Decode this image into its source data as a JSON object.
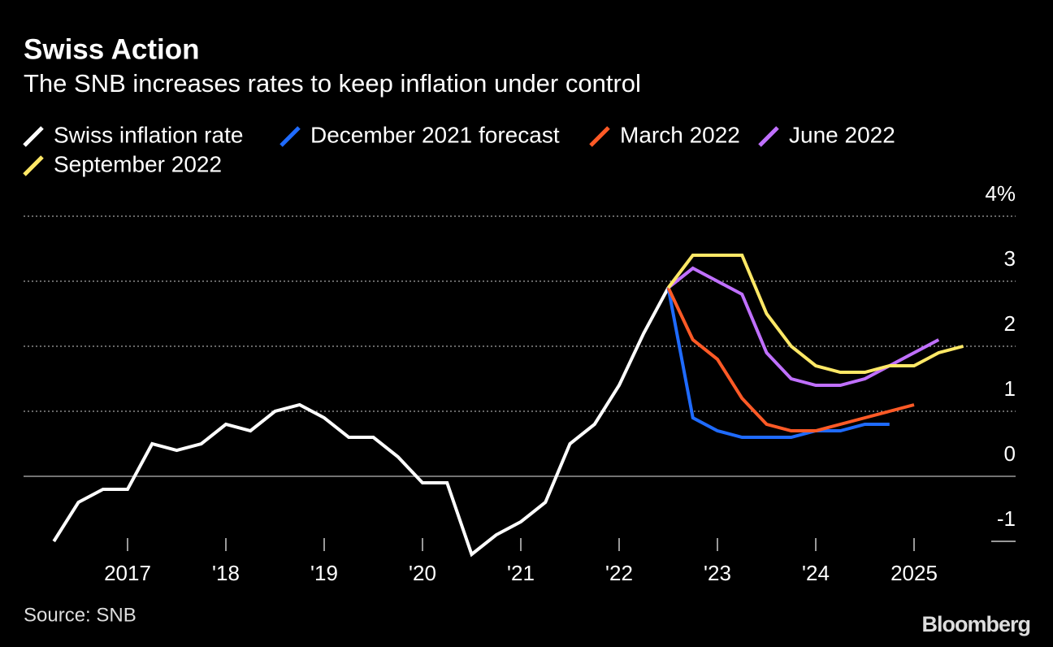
{
  "chart_data": {
    "type": "line",
    "title": "Swiss Action",
    "subtitle": "The SNB increases rates to keep inflation under control",
    "source": "Source: SNB",
    "brand": "Bloomberg",
    "xlim": [
      2016,
      2026
    ],
    "xticks": [
      2017,
      {
        "value": 2018,
        "label": "'18"
      },
      {
        "value": 2019,
        "label": "'19"
      },
      {
        "value": 2020,
        "label": "'20"
      },
      {
        "value": 2021,
        "label": "'21"
      },
      {
        "value": 2022,
        "label": "'22"
      },
      {
        "value": 2023,
        "label": "'23"
      },
      {
        "value": 2024,
        "label": "'24"
      },
      2025
    ],
    "ylim": [
      -1.3,
      4.3
    ],
    "yticks": [
      {
        "value": 4,
        "label": "4%"
      },
      3,
      2,
      1,
      0,
      -1
    ],
    "grid": true,
    "series": [
      {
        "name": "Swiss inflation rate",
        "color": "#ffffff",
        "x": [
          2016.25,
          2016.5,
          2016.75,
          2017.0,
          2017.25,
          2017.5,
          2017.75,
          2018.0,
          2018.25,
          2018.5,
          2018.75,
          2019.0,
          2019.25,
          2019.5,
          2019.75,
          2020.0,
          2020.25,
          2020.5,
          2020.75,
          2021.0,
          2021.25,
          2021.5,
          2021.75,
          2022.0,
          2022.25,
          2022.5
        ],
        "values": [
          -1.0,
          -0.4,
          -0.2,
          -0.2,
          0.5,
          0.4,
          0.5,
          0.8,
          0.7,
          1.0,
          1.1,
          0.9,
          0.6,
          0.6,
          0.3,
          -0.1,
          -0.1,
          -1.2,
          -0.9,
          -0.7,
          -0.4,
          0.5,
          0.8,
          1.4,
          2.2,
          2.9
        ]
      },
      {
        "name": "December 2021 forecast",
        "color": "#1f6bff",
        "x": [
          2022.5,
          2022.75,
          2023.0,
          2023.25,
          2023.5,
          2023.75,
          2024.0,
          2024.25,
          2024.5,
          2024.75
        ],
        "values": [
          2.9,
          0.9,
          0.7,
          0.6,
          0.6,
          0.6,
          0.7,
          0.7,
          0.8,
          0.8
        ]
      },
      {
        "name": "March 2022",
        "color": "#ff5a26",
        "x": [
          2022.5,
          2022.75,
          2023.0,
          2023.25,
          2023.5,
          2023.75,
          2024.0,
          2024.25,
          2024.5,
          2024.75,
          2025.0
        ],
        "values": [
          2.9,
          2.1,
          1.8,
          1.2,
          0.8,
          0.7,
          0.7,
          0.8,
          0.9,
          1.0,
          1.1
        ]
      },
      {
        "name": "June 2022",
        "color": "#c070ff",
        "x": [
          2022.5,
          2022.75,
          2023.0,
          2023.25,
          2023.5,
          2023.75,
          2024.0,
          2024.25,
          2024.5,
          2024.75,
          2025.0,
          2025.25
        ],
        "values": [
          2.9,
          3.2,
          3.0,
          2.8,
          1.9,
          1.5,
          1.4,
          1.4,
          1.5,
          1.7,
          1.9,
          2.1
        ]
      },
      {
        "name": "September 2022",
        "color": "#ffe866",
        "x": [
          2022.5,
          2022.75,
          2023.0,
          2023.25,
          2023.5,
          2023.75,
          2024.0,
          2024.25,
          2024.5,
          2024.75,
          2025.0,
          2025.25,
          2025.5
        ],
        "values": [
          2.9,
          3.4,
          3.4,
          3.4,
          2.5,
          2.0,
          1.7,
          1.6,
          1.6,
          1.7,
          1.7,
          1.9,
          2.0
        ]
      }
    ]
  }
}
